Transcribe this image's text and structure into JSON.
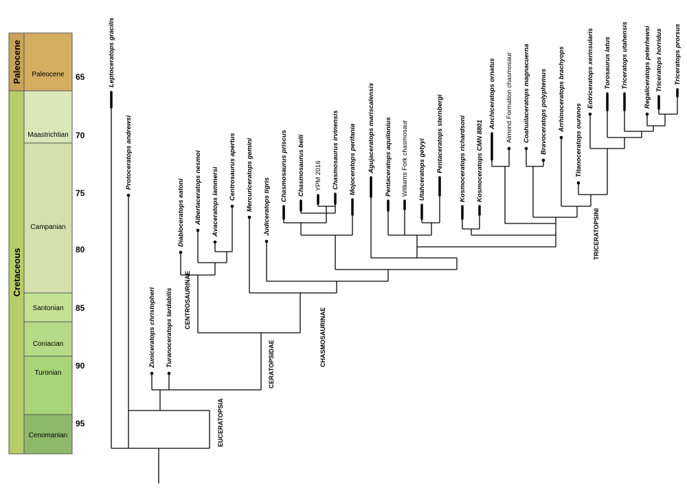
{
  "timescale": {
    "eras": [
      {
        "name": "Paleocene",
        "color": "#c9a35a"
      },
      {
        "name": "Cretaceous",
        "color": "#b8cc6a"
      }
    ],
    "stages": [
      {
        "name": "Paleocene",
        "color": "#d4ad60"
      },
      {
        "name": "Maastrichtian",
        "color": "#dbe6b9"
      },
      {
        "name": "Campanian",
        "color": "#d6e0ad"
      },
      {
        "name": "Santonian",
        "color": "#c4e295"
      },
      {
        "name": "Coniacian",
        "color": "#b5da88"
      },
      {
        "name": "Turonian",
        "color": "#a9d47a"
      },
      {
        "name": "Cenomanian",
        "color": "#8fb96a"
      }
    ],
    "ages": [
      "65",
      "70",
      "75",
      "80",
      "85",
      "90",
      "95"
    ]
  },
  "taxa": [
    {
      "label": "Leptoceratops gracilis",
      "style": "italic"
    },
    {
      "label": "Protoceratops andrewsi",
      "style": "italic"
    },
    {
      "label": "Zuniceratops christopheri",
      "style": "italic"
    },
    {
      "label": "Turanoceratops tardabilis",
      "style": "italic"
    },
    {
      "label": "Diabloceratops eatoni",
      "style": "italic"
    },
    {
      "label": "Albertaceratops nesmoi",
      "style": "italic"
    },
    {
      "label": "Avaceratops lammersi",
      "style": "italic"
    },
    {
      "label": "Centrosaurus apertus",
      "style": "italic"
    },
    {
      "label": "Mercuriceratops gemini",
      "style": "italic"
    },
    {
      "label": "Judiceratops tigris",
      "style": "italic"
    },
    {
      "label": "Chasmosaurus priscus",
      "style": "italic"
    },
    {
      "label": "Chasmosaurus belli",
      "style": "italic"
    },
    {
      "label": "YPM 2016",
      "style": "plain"
    },
    {
      "label": "Chasmosaurus irvinensis",
      "style": "italic"
    },
    {
      "label": "Mojoceratops perifania",
      "style": "italic"
    },
    {
      "label": "Agujaceratops mariscalensis",
      "style": "italic"
    },
    {
      "label": "Pentaceratops aquilonius",
      "style": "italic"
    },
    {
      "label": "Williams Fork chasmosaur",
      "style": "plain"
    },
    {
      "label": "Utahceratops getyyi",
      "style": "italic"
    },
    {
      "label": "Pentaceratops sternbergi",
      "style": "italic"
    },
    {
      "label": "Kosmoceratops richardsoni",
      "style": "italic"
    },
    {
      "label": "Kosmoceratops CMN 8801",
      "style": "italic"
    },
    {
      "label": "Anchiceratops ornatus",
      "style": "italic"
    },
    {
      "label": "Almond Formation chasmosaur",
      "style": "plain"
    },
    {
      "label": "Coahuilaceratops magnacuerna",
      "style": "italic"
    },
    {
      "label": "Bravoceratops polyphemus",
      "style": "italic"
    },
    {
      "label": "Arrhinoceratops brachyops",
      "style": "italic"
    },
    {
      "label": "Titanoceratops ouranos",
      "style": "italic"
    },
    {
      "label": "Eotriceratops xerinsularis",
      "style": "italic"
    },
    {
      "label": "Torosaurus latus",
      "style": "italic"
    },
    {
      "label": "Triceratops utahensis",
      "style": "italic"
    },
    {
      "label": "Regaliceratops peterhewsi",
      "style": "italic"
    },
    {
      "label": "Triceratops horridus",
      "style": "italic"
    },
    {
      "label": "Triceratops prorsus",
      "style": "italic"
    }
  ],
  "clades": {
    "euceratopsia": "EUCERATOPSIA",
    "ceratopsidae": "CERATOPSIDAE",
    "centrosaurinae": "CENTROSAURINAE",
    "chasmosaurinae": "CHASMOSAURINAE",
    "triceratopsini": "TRICERATOPSINI"
  }
}
